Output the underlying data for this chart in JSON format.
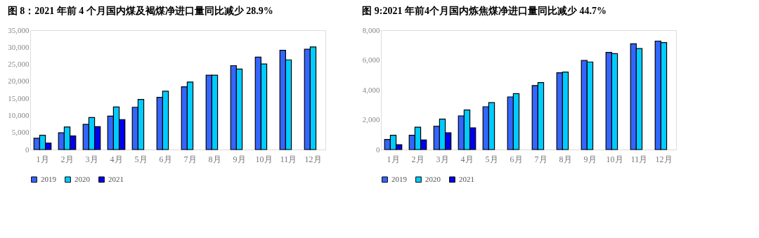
{
  "chart_data": [
    {
      "type": "bar",
      "title": "图 8：2021 年前 4 个月国内煤及褐煤净进口量同比减少 28.9%",
      "categories": [
        "1月",
        "2月",
        "3月",
        "4月",
        "5月",
        "6月",
        "7月",
        "8月",
        "9月",
        "10月",
        "11月",
        "12月"
      ],
      "series": [
        {
          "name": "2019",
          "color": "#3366ff",
          "values": [
            3300,
            4900,
            7400,
            9800,
            12400,
            15300,
            18400,
            21800,
            24600,
            27100,
            29100,
            29400
          ]
        },
        {
          "name": "2020",
          "color": "#00ccff",
          "values": [
            4200,
            6600,
            9400,
            12500,
            14700,
            17100,
            19800,
            21800,
            23600,
            25100,
            26300,
            30100
          ]
        },
        {
          "name": "2021",
          "color": "#0000ee",
          "values": [
            1900,
            4000,
            6700,
            8800,
            null,
            null,
            null,
            null,
            null,
            null,
            null,
            null
          ]
        }
      ],
      "ylim": [
        0,
        35000
      ],
      "yticks": [
        {
          "value": 0,
          "label": "0"
        },
        {
          "value": 5000,
          "label": "5,000"
        },
        {
          "value": 10000,
          "label": "10,000"
        },
        {
          "value": 15000,
          "label": "15,000"
        },
        {
          "value": 20000,
          "label": "20,000"
        },
        {
          "value": 25000,
          "label": "25,000"
        },
        {
          "value": 30000,
          "label": "30,000"
        },
        {
          "value": 35000,
          "label": "35,000"
        }
      ],
      "grid": false,
      "legend": "bottom"
    },
    {
      "type": "bar",
      "title": "图 9:2021 年前4个月国内炼焦煤净进口量同比减少 44.7%",
      "categories": [
        "1月",
        "2月",
        "3月",
        "4月",
        "5月",
        "6月",
        "7月",
        "8月",
        "9月",
        "10月",
        "11月",
        "12月"
      ],
      "series": [
        {
          "name": "2019",
          "color": "#3366ff",
          "values": [
            680,
            960,
            1560,
            2260,
            2870,
            3530,
            4290,
            5150,
            5970,
            6510,
            7090,
            7270
          ]
        },
        {
          "name": "2020",
          "color": "#00ccff",
          "values": [
            960,
            1500,
            2040,
            2650,
            3150,
            3750,
            4490,
            5190,
            5870,
            6430,
            6770,
            7170
          ]
        },
        {
          "name": "2021",
          "color": "#0000ee",
          "values": [
            320,
            640,
            1120,
            1460,
            null,
            null,
            null,
            null,
            null,
            null,
            null,
            null
          ]
        }
      ],
      "ylim": [
        0,
        8000
      ],
      "yticks": [
        {
          "value": 0,
          "label": "0"
        },
        {
          "value": 2000,
          "label": "2,000"
        },
        {
          "value": 4000,
          "label": "4,000"
        },
        {
          "value": 6000,
          "label": "6,000"
        },
        {
          "value": 8000,
          "label": "8,000"
        }
      ],
      "grid": false,
      "legend": "bottom"
    }
  ]
}
